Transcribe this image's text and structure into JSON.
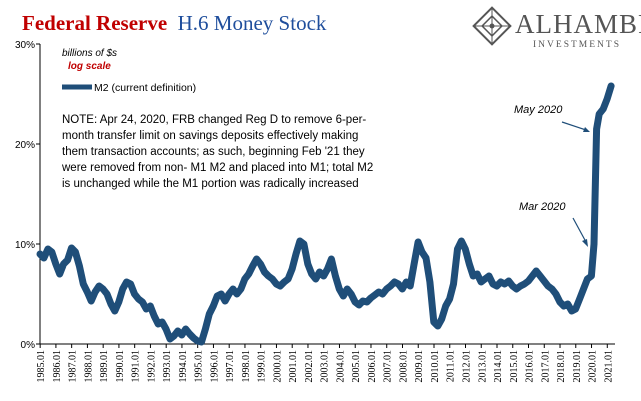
{
  "header": {
    "title_part1": "Federal Reserve",
    "title_part2": "H.6 Money Stock",
    "title_color1": "#c00000",
    "title_color2": "#1f4e9c"
  },
  "logo": {
    "name": "ALHAMBRA",
    "sub": "INVESTMENTS",
    "icon": "alhambra-diamond-logo",
    "color": "#555555"
  },
  "chart_data": {
    "type": "line",
    "unit_label": "billions of $s",
    "scale_label": "log scale",
    "ylim": [
      0,
      30
    ],
    "yticks": [
      0,
      10,
      20,
      30
    ],
    "ytick_labels": [
      "0%",
      "10%",
      "20%",
      "30%"
    ],
    "xlim": [
      1985.0,
      2021.5
    ],
    "xtick_labels": [
      "1985.01",
      "1986.01",
      "1987.01",
      "1988.01",
      "1989.01",
      "1990.01",
      "1991.01",
      "1992.01",
      "1993.01",
      "1994.01",
      "1995.01",
      "1996.01",
      "1997.01",
      "1998.01",
      "1999.01",
      "2000.01",
      "2001.01",
      "2002.01",
      "2003.01",
      "2004.01",
      "2005.01",
      "2006.01",
      "2007.01",
      "2008.01",
      "2009.01",
      "2010.01",
      "2011.01",
      "2012.01",
      "2013.01",
      "2014.01",
      "2015.01",
      "2016.01",
      "2017.01",
      "2018.01",
      "2019.01",
      "2020.01",
      "2021.01"
    ],
    "grid": false,
    "legend_position": "top-left",
    "series": [
      {
        "name": "M2 (current definition)",
        "color": "#1f4e79",
        "points": [
          [
            1985.0,
            9.0
          ],
          [
            1985.25,
            8.6
          ],
          [
            1985.5,
            9.5
          ],
          [
            1985.75,
            9.2
          ],
          [
            1986.0,
            8.0
          ],
          [
            1986.25,
            7.0
          ],
          [
            1986.5,
            8.0
          ],
          [
            1986.75,
            8.4
          ],
          [
            1987.0,
            9.6
          ],
          [
            1987.25,
            9.2
          ],
          [
            1987.5,
            7.8
          ],
          [
            1987.75,
            6.0
          ],
          [
            1988.0,
            5.2
          ],
          [
            1988.25,
            4.3
          ],
          [
            1988.5,
            5.2
          ],
          [
            1988.75,
            5.8
          ],
          [
            1989.0,
            5.5
          ],
          [
            1989.25,
            5.0
          ],
          [
            1989.5,
            4.0
          ],
          [
            1989.75,
            3.3
          ],
          [
            1990.0,
            4.2
          ],
          [
            1990.25,
            5.5
          ],
          [
            1990.5,
            6.2
          ],
          [
            1990.75,
            6.0
          ],
          [
            1991.0,
            5.0
          ],
          [
            1991.25,
            4.5
          ],
          [
            1991.5,
            4.2
          ],
          [
            1991.75,
            3.5
          ],
          [
            1992.0,
            3.8
          ],
          [
            1992.25,
            2.8
          ],
          [
            1992.5,
            2.0
          ],
          [
            1992.75,
            2.2
          ],
          [
            1993.0,
            1.5
          ],
          [
            1993.25,
            0.5
          ],
          [
            1993.5,
            0.8
          ],
          [
            1993.75,
            1.3
          ],
          [
            1994.0,
            0.9
          ],
          [
            1994.25,
            1.5
          ],
          [
            1994.5,
            1.0
          ],
          [
            1994.75,
            0.6
          ],
          [
            1995.0,
            0.3
          ],
          [
            1995.25,
            0.2
          ],
          [
            1995.5,
            1.5
          ],
          [
            1995.75,
            3.0
          ],
          [
            1996.0,
            3.8
          ],
          [
            1996.25,
            4.8
          ],
          [
            1996.5,
            5.0
          ],
          [
            1996.75,
            4.3
          ],
          [
            1997.0,
            5.0
          ],
          [
            1997.25,
            5.5
          ],
          [
            1997.5,
            5.0
          ],
          [
            1997.75,
            5.5
          ],
          [
            1998.0,
            6.5
          ],
          [
            1998.25,
            7.0
          ],
          [
            1998.5,
            7.8
          ],
          [
            1998.75,
            8.5
          ],
          [
            1999.0,
            8.0
          ],
          [
            1999.25,
            7.2
          ],
          [
            1999.5,
            6.8
          ],
          [
            1999.75,
            6.5
          ],
          [
            2000.0,
            6.0
          ],
          [
            2000.25,
            5.8
          ],
          [
            2000.5,
            6.2
          ],
          [
            2000.75,
            6.5
          ],
          [
            2001.0,
            7.5
          ],
          [
            2001.25,
            9.0
          ],
          [
            2001.5,
            10.3
          ],
          [
            2001.75,
            10.0
          ],
          [
            2002.0,
            8.0
          ],
          [
            2002.25,
            7.0
          ],
          [
            2002.5,
            6.5
          ],
          [
            2002.75,
            7.2
          ],
          [
            2003.0,
            6.8
          ],
          [
            2003.25,
            7.5
          ],
          [
            2003.5,
            8.5
          ],
          [
            2003.75,
            6.8
          ],
          [
            2004.0,
            5.5
          ],
          [
            2004.25,
            4.8
          ],
          [
            2004.5,
            5.5
          ],
          [
            2004.75,
            5.0
          ],
          [
            2005.0,
            4.2
          ],
          [
            2005.25,
            3.9
          ],
          [
            2005.5,
            4.3
          ],
          [
            2005.75,
            4.2
          ],
          [
            2006.0,
            4.6
          ],
          [
            2006.25,
            4.9
          ],
          [
            2006.5,
            5.2
          ],
          [
            2006.75,
            5.0
          ],
          [
            2007.0,
            5.5
          ],
          [
            2007.25,
            5.8
          ],
          [
            2007.5,
            6.2
          ],
          [
            2007.75,
            6.0
          ],
          [
            2008.0,
            5.5
          ],
          [
            2008.25,
            6.2
          ],
          [
            2008.5,
            5.8
          ],
          [
            2008.75,
            8.0
          ],
          [
            2009.0,
            10.2
          ],
          [
            2009.25,
            9.2
          ],
          [
            2009.5,
            8.6
          ],
          [
            2009.75,
            6.2
          ],
          [
            2010.0,
            2.2
          ],
          [
            2010.25,
            1.8
          ],
          [
            2010.5,
            2.5
          ],
          [
            2010.75,
            3.8
          ],
          [
            2011.0,
            4.5
          ],
          [
            2011.25,
            6.0
          ],
          [
            2011.5,
            9.5
          ],
          [
            2011.75,
            10.3
          ],
          [
            2012.0,
            9.5
          ],
          [
            2012.25,
            8.0
          ],
          [
            2012.5,
            6.8
          ],
          [
            2012.75,
            7.0
          ],
          [
            2013.0,
            6.2
          ],
          [
            2013.25,
            6.5
          ],
          [
            2013.5,
            6.8
          ],
          [
            2013.75,
            6.0
          ],
          [
            2014.0,
            5.8
          ],
          [
            2014.25,
            6.2
          ],
          [
            2014.5,
            6.0
          ],
          [
            2014.75,
            6.3
          ],
          [
            2015.0,
            5.8
          ],
          [
            2015.25,
            5.5
          ],
          [
            2015.5,
            5.8
          ],
          [
            2015.75,
            6.0
          ],
          [
            2016.0,
            6.3
          ],
          [
            2016.25,
            6.8
          ],
          [
            2016.5,
            7.3
          ],
          [
            2016.75,
            6.8
          ],
          [
            2017.0,
            6.3
          ],
          [
            2017.25,
            5.8
          ],
          [
            2017.5,
            5.5
          ],
          [
            2017.75,
            5.0
          ],
          [
            2018.0,
            4.2
          ],
          [
            2018.25,
            3.8
          ],
          [
            2018.5,
            4.0
          ],
          [
            2018.75,
            3.3
          ],
          [
            2019.0,
            3.5
          ],
          [
            2019.25,
            4.5
          ],
          [
            2019.5,
            5.5
          ],
          [
            2019.75,
            6.5
          ],
          [
            2020.0,
            6.8
          ],
          [
            2020.17,
            10.0
          ],
          [
            2020.33,
            21.5
          ],
          [
            2020.5,
            23.0
          ],
          [
            2020.75,
            23.5
          ],
          [
            2021.0,
            24.5
          ],
          [
            2021.25,
            25.8
          ]
        ]
      }
    ],
    "annotations": [
      {
        "text": "May 2020",
        "x": 2020.4,
        "y": 21.8
      },
      {
        "text": "Mar 2020",
        "x": 2020.17,
        "y": 9.8
      }
    ],
    "note": [
      "NOTE:  Apr 24, 2020, FRB changed Reg D to remove  6-per-",
      "month transfer limit on savings deposits effectively making",
      " them  transaction accounts; as such, beginning Feb '21 they",
      "were removed  from non- M1 M2 and placed into M1; total M2",
      "is unchanged while the M1 portion was radically increased"
    ]
  }
}
